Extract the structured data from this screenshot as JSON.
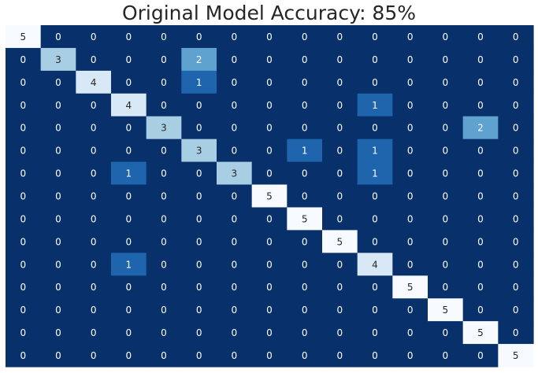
{
  "chart_data": {
    "type": "heatmap",
    "title": "Original Model Accuracy: 85%",
    "xlabel": "",
    "ylabel": "",
    "colormap": "Blues",
    "value_range": [
      0,
      5
    ],
    "colorbar": false,
    "matrix": [
      [
        5,
        0,
        0,
        0,
        0,
        0,
        0,
        0,
        0,
        0,
        0,
        0,
        0,
        0,
        0
      ],
      [
        0,
        3,
        0,
        0,
        0,
        2,
        0,
        0,
        0,
        0,
        0,
        0,
        0,
        0,
        0
      ],
      [
        0,
        0,
        4,
        0,
        0,
        1,
        0,
        0,
        0,
        0,
        0,
        0,
        0,
        0,
        0
      ],
      [
        0,
        0,
        0,
        4,
        0,
        0,
        0,
        0,
        0,
        0,
        1,
        0,
        0,
        0,
        0
      ],
      [
        0,
        0,
        0,
        0,
        3,
        0,
        0,
        0,
        0,
        0,
        0,
        0,
        0,
        2,
        0
      ],
      [
        0,
        0,
        0,
        0,
        0,
        3,
        0,
        0,
        1,
        0,
        1,
        0,
        0,
        0,
        0
      ],
      [
        0,
        0,
        0,
        1,
        0,
        0,
        3,
        0,
        0,
        0,
        1,
        0,
        0,
        0,
        0
      ],
      [
        0,
        0,
        0,
        0,
        0,
        0,
        0,
        5,
        0,
        0,
        0,
        0,
        0,
        0,
        0
      ],
      [
        0,
        0,
        0,
        0,
        0,
        0,
        0,
        0,
        5,
        0,
        0,
        0,
        0,
        0,
        0
      ],
      [
        0,
        0,
        0,
        0,
        0,
        0,
        0,
        0,
        0,
        5,
        0,
        0,
        0,
        0,
        0
      ],
      [
        0,
        0,
        0,
        1,
        0,
        0,
        0,
        0,
        0,
        0,
        4,
        0,
        0,
        0,
        0
      ],
      [
        0,
        0,
        0,
        0,
        0,
        0,
        0,
        0,
        0,
        0,
        0,
        5,
        0,
        0,
        0
      ],
      [
        0,
        0,
        0,
        0,
        0,
        0,
        0,
        0,
        0,
        0,
        0,
        0,
        5,
        0,
        0
      ],
      [
        0,
        0,
        0,
        0,
        0,
        0,
        0,
        0,
        0,
        0,
        0,
        0,
        0,
        5,
        0
      ],
      [
        0,
        0,
        0,
        0,
        0,
        0,
        0,
        0,
        0,
        0,
        0,
        0,
        0,
        0,
        5
      ]
    ],
    "cell_colors": {
      "0": "#08306b",
      "1": "#1f65ad",
      "2": "#5fa2cf",
      "3": "#a8cee4",
      "4": "#d8e8f6",
      "5": "#f7fbff"
    },
    "text_colors": {
      "dark": "#ffffff",
      "light": "#262626"
    }
  }
}
